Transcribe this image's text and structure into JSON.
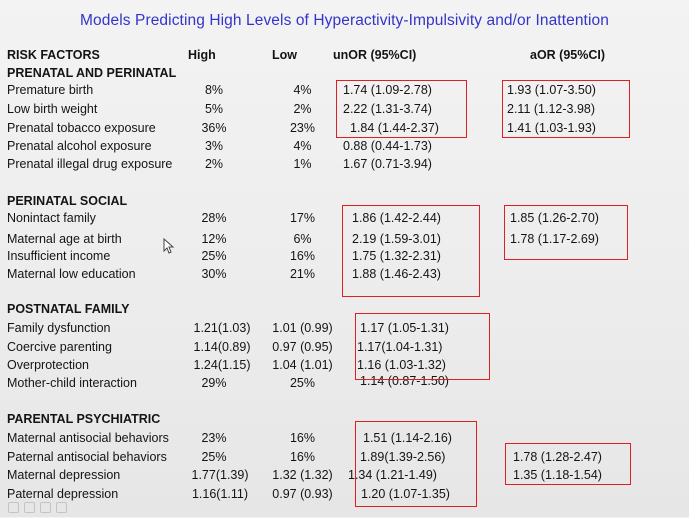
{
  "title": "Models Predicting High Levels of Hyperactivity-Impulsivity and/or Inattention",
  "headers": {
    "risk_factors": "RISK FACTORS",
    "high": "High",
    "low": "Low",
    "unor": "unOR (95%CI)",
    "aor": "aOR (95%CI)"
  },
  "sections": [
    {
      "title": "PRENATAL AND PERINATAL",
      "rows": [
        {
          "name": "Premature birth",
          "high": "8%",
          "low": "4%",
          "unor": "1.74 (1.09-2.78)",
          "aor": "1.93 (1.07-3.50)"
        },
        {
          "name": "Low birth weight",
          "high": "5%",
          "low": "2%",
          "unor": "2.22 (1.31-3.74)",
          "aor": "2.11 (1.12-3.98)"
        },
        {
          "name": "Prenatal tobacco exposure",
          "high": "36%",
          "low": "23%",
          "unor": "1.84 (1.44-2.37)",
          "aor": "1.41 (1.03-1.93)"
        },
        {
          "name": "Prenatal alcohol exposure",
          "high": "3%",
          "low": "4%",
          "unor": "0.88 (0.44-1.73)",
          "aor": ""
        },
        {
          "name": "Prenatal illegal drug exposure",
          "high": "2%",
          "low": "1%",
          "unor": "1.67 (0.71-3.94)",
          "aor": ""
        }
      ]
    },
    {
      "title": "PERINATAL SOCIAL",
      "rows": [
        {
          "name": "Nonintact family",
          "high": "28%",
          "low": "17%",
          "unor": "1.86 (1.42-2.44)",
          "aor": "1.85 (1.26-2.70)"
        },
        {
          "name": "Maternal age at birth",
          "high": "12%",
          "low": "6%",
          "unor": "2.19 (1.59-3.01)",
          "aor": "1.78 (1.17-2.69)"
        },
        {
          "name": "Insufficient income",
          "high": "25%",
          "low": "16%",
          "unor": "1.75 (1.32-2.31)",
          "aor": ""
        },
        {
          "name": "Maternal low education",
          "high": "30%",
          "low": "21%",
          "unor": "1.88 (1.46-2.43)",
          "aor": ""
        }
      ]
    },
    {
      "title": "POSTNATAL FAMILY",
      "rows": [
        {
          "name": "Family dysfunction",
          "high": "1.21(1.03)",
          "low": "1.01 (0.99)",
          "unor": "1.17 (1.05-1.31)",
          "aor": ""
        },
        {
          "name": "Coercive parenting",
          "high": "1.14(0.89)",
          "low": "0.97 (0.95)",
          "unor": "1.17(1.04-1.31)",
          "aor": ""
        },
        {
          "name": "Overprotection",
          "high": "1.24(1.15)",
          "low": "1.04 (1.01)",
          "unor": "1.16 (1.03-1.32)",
          "aor": ""
        },
        {
          "name": "Mother-child interaction",
          "high": "29%",
          "low": "25%",
          "unor": "1.14 (0.87-1.50)",
          "aor": ""
        }
      ]
    },
    {
      "title": "PARENTAL PSYCHIATRIC",
      "rows": [
        {
          "name": "Maternal antisocial behaviors",
          "high": "23%",
          "low": "16%",
          "unor": "1.51 (1.14-2.16)",
          "aor": ""
        },
        {
          "name": "Paternal antisocial behaviors",
          "high": "25%",
          "low": "16%",
          "unor": "1.89(1.39-2.56)",
          "aor": "1.78 (1.28-2.47)"
        },
        {
          "name": "Maternal depression",
          "high": "1.77(1.39)",
          "low": "1.32 (1.32)",
          "unor": "1.34 (1.21-1.49)",
          "aor": "1.35 (1.18-1.54)"
        },
        {
          "name": "Paternal depression",
          "high": "1.16(1.11)",
          "low": "0.97 (0.93)",
          "unor": "1.20 (1.07-1.35)",
          "aor": ""
        }
      ]
    }
  ],
  "colors": {
    "title": "#3434c8",
    "highlight_box": "#e02020",
    "text": "#141414"
  },
  "icons": [
    "cursor-arrow-icon"
  ]
}
